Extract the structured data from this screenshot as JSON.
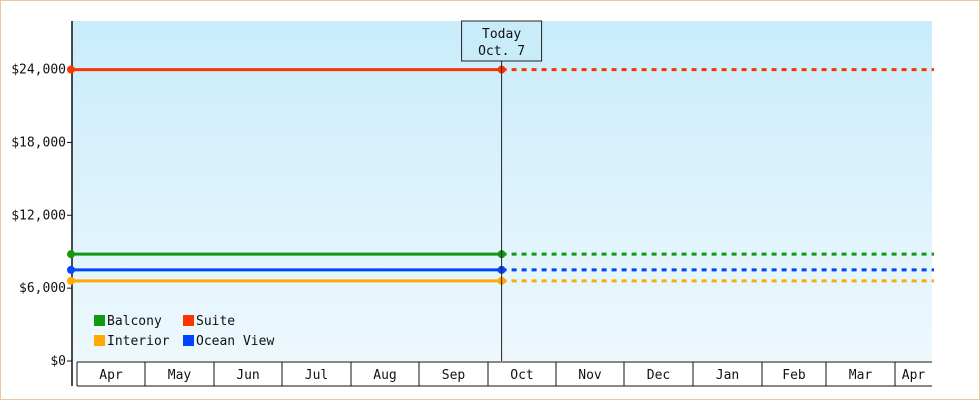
{
  "chart_data": {
    "type": "line",
    "x_months": [
      "Apr",
      "May",
      "Jun",
      "Jul",
      "Aug",
      "Sep",
      "Oct",
      "Nov",
      "Dec",
      "Jan",
      "Feb",
      "Mar",
      "Apr"
    ],
    "y_ticks": [
      "$0",
      "$6,000",
      "$12,000",
      "$18,000",
      "$24,000"
    ],
    "y_tick_values": [
      0,
      6000,
      12000,
      18000,
      24000
    ],
    "ylim": [
      0,
      28000
    ],
    "today": {
      "line1": "Today",
      "line2": "Oct. 7",
      "month_position": 6.2
    },
    "series": [
      {
        "name": "Suite",
        "value": 24000,
        "color": "#ff3300"
      },
      {
        "name": "Balcony",
        "value": 8800,
        "color": "#119911"
      },
      {
        "name": "Ocean View",
        "value": 7500,
        "color": "#0044ff"
      },
      {
        "name": "Interior",
        "value": 6600,
        "color": "#ffaa00"
      }
    ],
    "legend": {
      "placement": "bottom-left",
      "items": [
        {
          "name": "Balcony",
          "color": "#119911"
        },
        {
          "name": "Suite",
          "color": "#ff3300"
        },
        {
          "name": "Interior",
          "color": "#ffaa00"
        },
        {
          "name": "Ocean View",
          "color": "#0044ff"
        }
      ]
    },
    "solid_until_today": true,
    "dotted_after_today": true,
    "background_gradient": [
      "#c9ecfb",
      "#eef8fd"
    ]
  }
}
